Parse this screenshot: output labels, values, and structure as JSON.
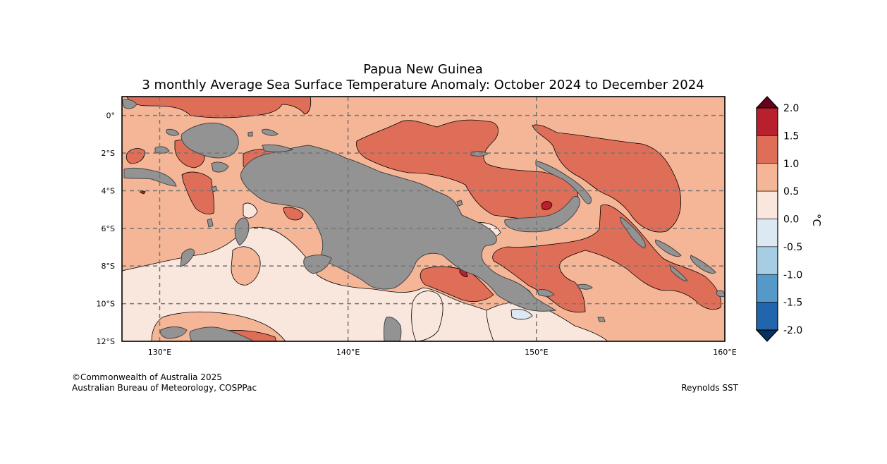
{
  "title": {
    "line1": "Papua New Guinea",
    "line2": "3 monthly Average Sea Surface Temperature Anomaly: October 2024 to December 2024"
  },
  "map": {
    "lon_range": [
      128,
      160
    ],
    "lat_range": [
      -12,
      1
    ],
    "lon_ticks": [
      {
        "value": 130,
        "label": "130°E"
      },
      {
        "value": 140,
        "label": "140°E"
      },
      {
        "value": 150,
        "label": "150°E"
      },
      {
        "value": 160,
        "label": "160°E"
      }
    ],
    "lat_ticks": [
      {
        "value": 0,
        "label": "0°"
      },
      {
        "value": -2,
        "label": "2°S"
      },
      {
        "value": -4,
        "label": "4°S"
      },
      {
        "value": -6,
        "label": "6°S"
      },
      {
        "value": -8,
        "label": "8°S"
      },
      {
        "value": -10,
        "label": "10°S"
      },
      {
        "value": -12,
        "label": "12°S"
      }
    ],
    "gridlines": "dashed",
    "land_color": "#939393"
  },
  "colorbar": {
    "unit": "°C",
    "ticks": [
      "2.0",
      "1.5",
      "1.0",
      "0.5",
      "0.0",
      "-0.5",
      "-1.0",
      "-1.5",
      "-2.0"
    ],
    "bins": [
      {
        "range": [
          1.5,
          2.0
        ],
        "color": "#b8202e"
      },
      {
        "range": [
          1.0,
          1.5
        ],
        "color": "#df6e59"
      },
      {
        "range": [
          0.5,
          1.0
        ],
        "color": "#f5b697"
      },
      {
        "range": [
          0.0,
          0.5
        ],
        "color": "#f9e6dc"
      },
      {
        "range": [
          -0.5,
          0.0
        ],
        "color": "#dde9f2"
      },
      {
        "range": [
          -1.0,
          -0.5
        ],
        "color": "#a6cde3"
      },
      {
        "range": [
          -1.5,
          -1.0
        ],
        "color": "#5499c7"
      },
      {
        "range": [
          -2.0,
          -1.5
        ],
        "color": "#2166ac"
      }
    ],
    "over_color": "#67001f",
    "under_color": "#053061"
  },
  "credits": {
    "copyright": "©Commonwealth of Australia 2025",
    "agency": "Australian Bureau of Meteorology, COSPPac",
    "source": "Reynolds SST"
  }
}
